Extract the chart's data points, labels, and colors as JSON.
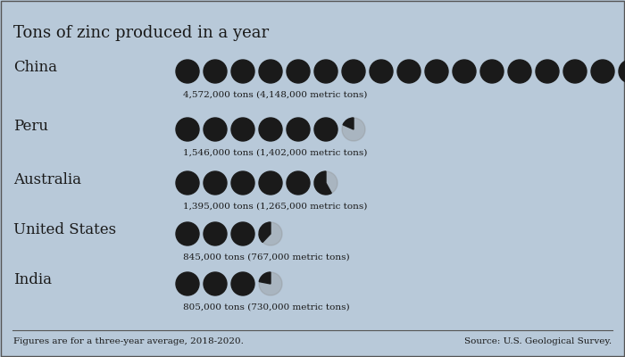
{
  "title": "Tons of zinc produced in a year",
  "background_color": "#b8c9d9",
  "border_color": "#888888",
  "unit": 250000,
  "countries": [
    {
      "name": "China",
      "value": 4572000,
      "label": "4,572,000 tons (4,148,000 metric tons)"
    },
    {
      "name": "Peru",
      "value": 1546000,
      "label": "1,546,000 tons (1,402,000 metric tons)"
    },
    {
      "name": "Australia",
      "value": 1395000,
      "label": "1,395,000 tons (1,265,000 metric tons)"
    },
    {
      "name": "United States",
      "value": 845000,
      "label": "845,000 tons (767,000 metric tons)"
    },
    {
      "name": "India",
      "value": 805000,
      "label": "805,000 tons (730,000 metric tons)"
    }
  ],
  "footer_left": "Figures are for a three-year average, 2018-2020.",
  "footer_right": "Source: U.S. Geological Survey.",
  "circle_color": "#1a1a1a",
  "text_color": "#1a1a1a"
}
